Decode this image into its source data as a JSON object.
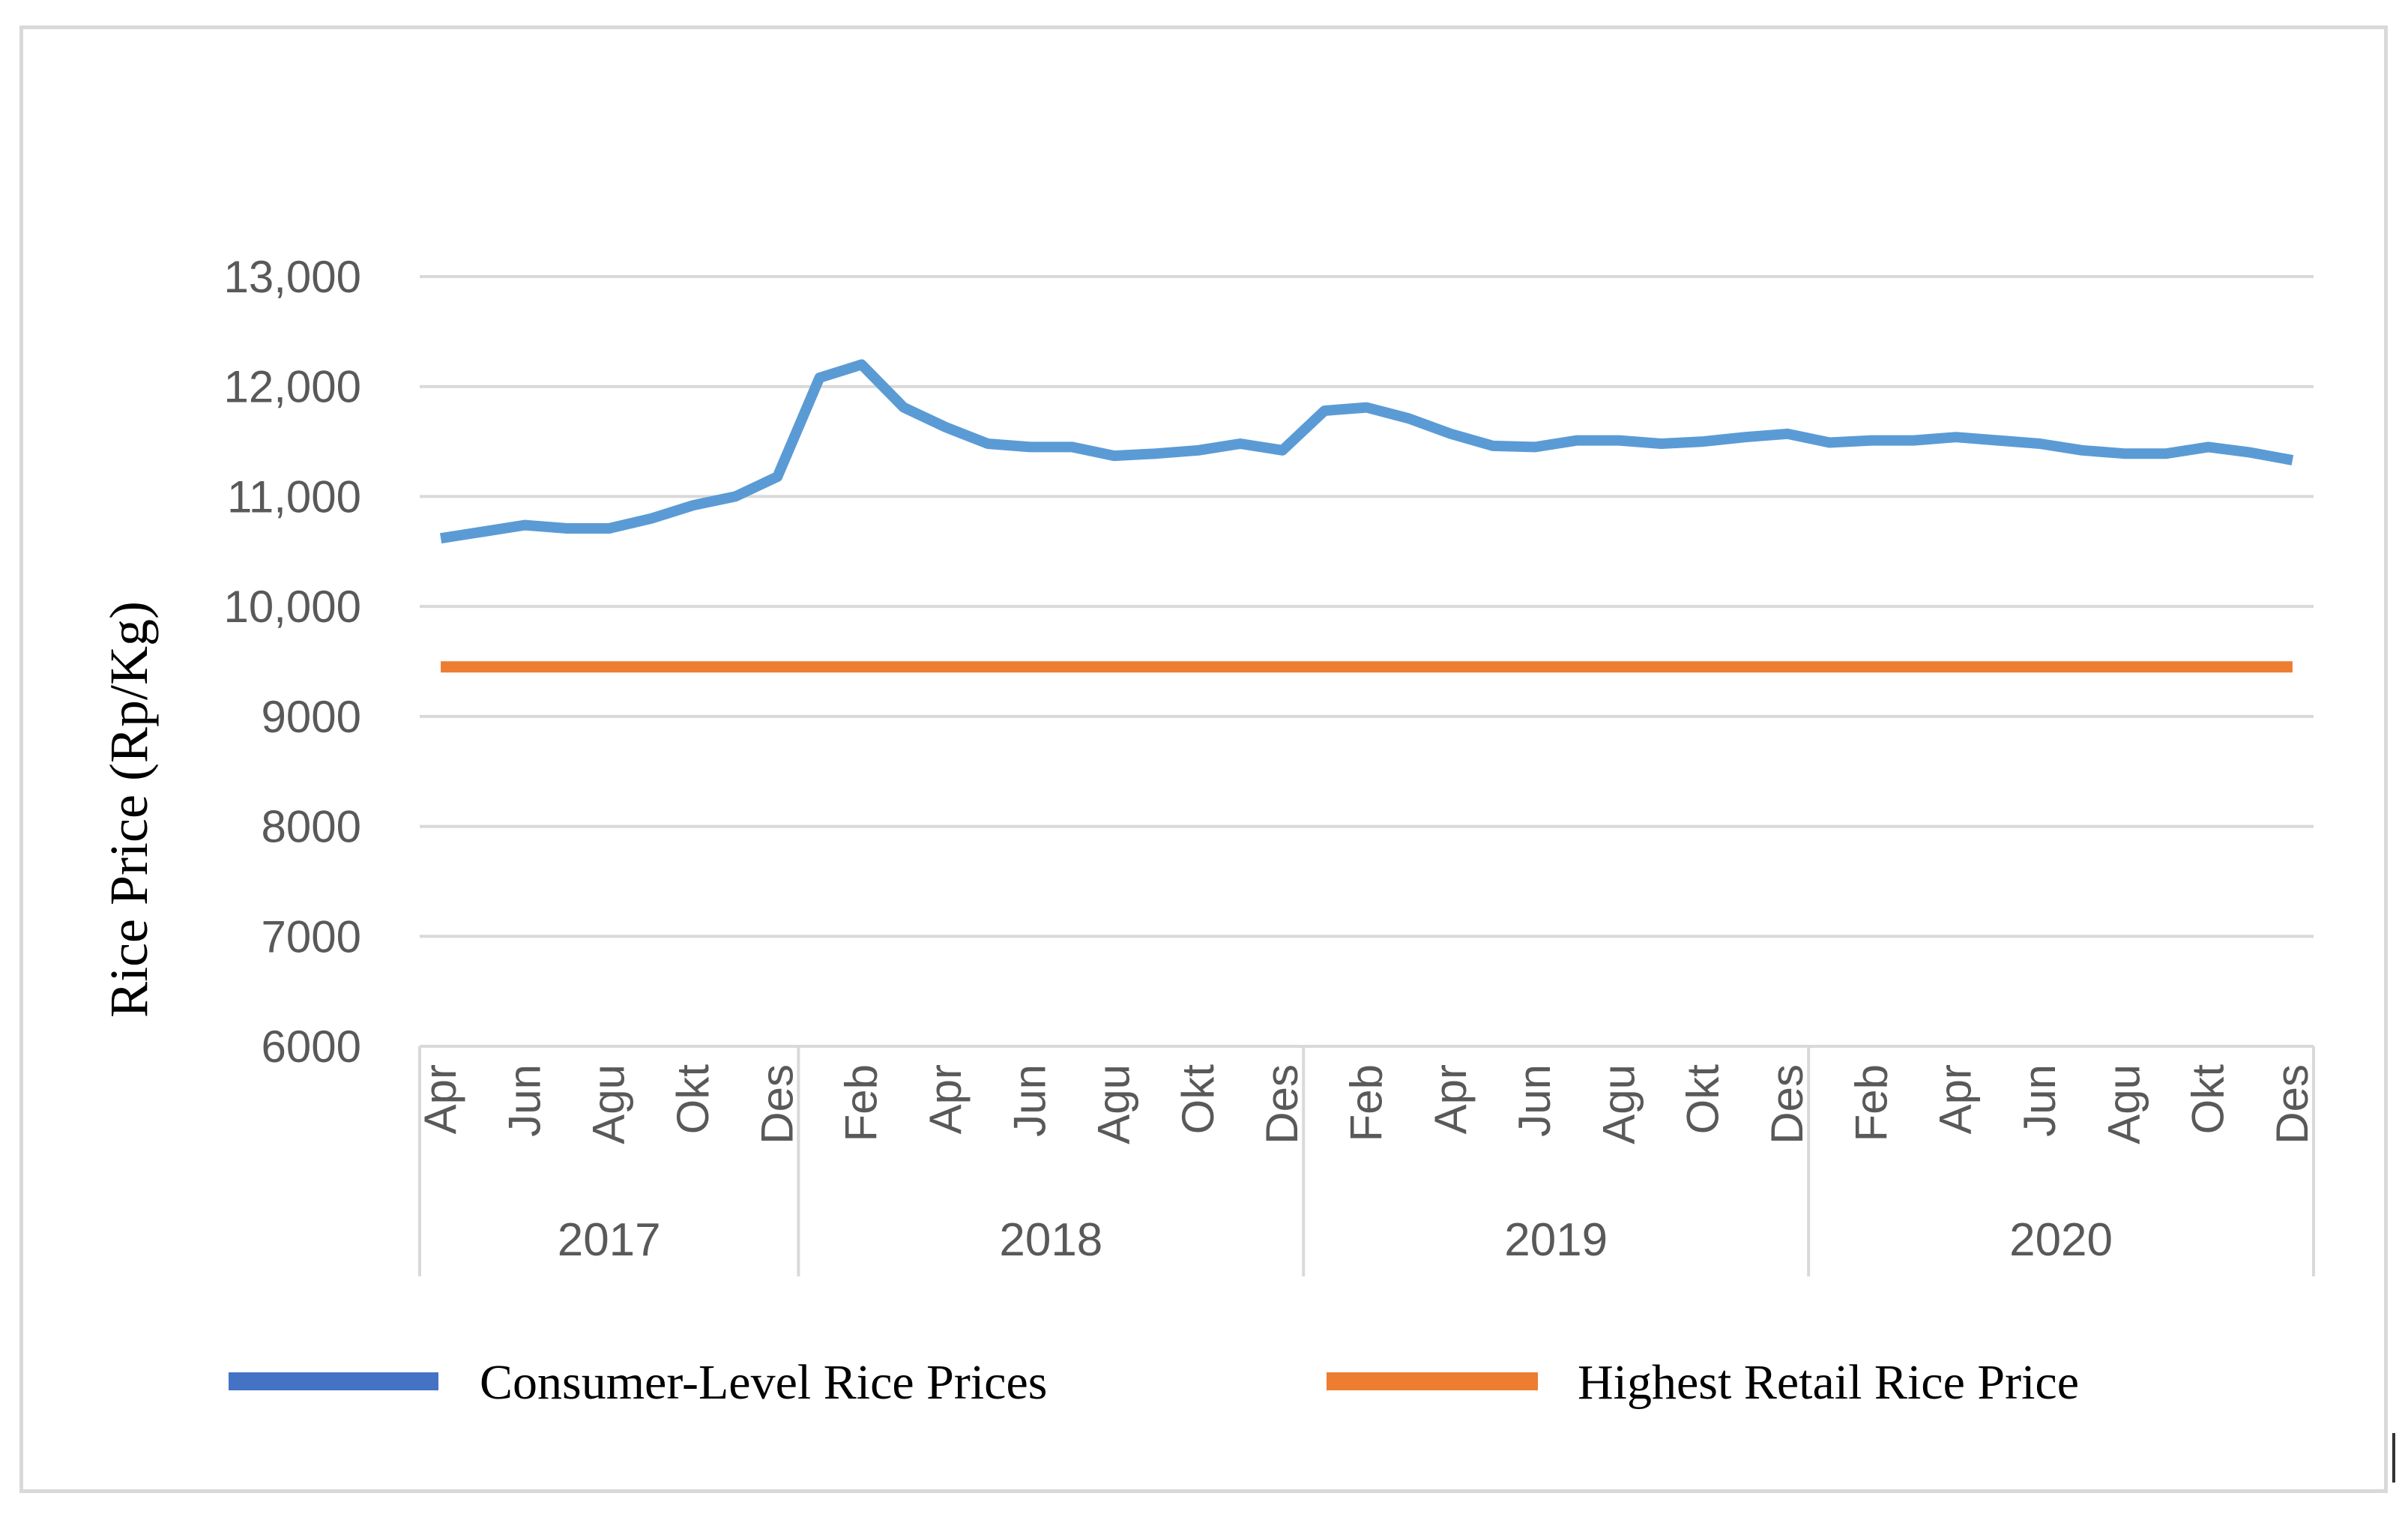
{
  "chart_data": {
    "type": "line",
    "title": "",
    "xlabel": "",
    "ylabel": "Rice Price (Rp/Kg)",
    "ylim": [
      6000,
      13000
    ],
    "y_ticks": [
      6000,
      7000,
      8000,
      9000,
      10000,
      11000,
      12000,
      13000
    ],
    "y_tick_labels": [
      "6000",
      "7000",
      "8000",
      "9000",
      "10,000",
      "11,000",
      "12,000",
      "13,000"
    ],
    "grid": true,
    "legend_position": "bottom",
    "x": [
      "2017-04",
      "2017-05",
      "2017-06",
      "2017-07",
      "2017-08",
      "2017-09",
      "2017-10",
      "2017-11",
      "2017-12",
      "2018-01",
      "2018-02",
      "2018-03",
      "2018-04",
      "2018-05",
      "2018-06",
      "2018-07",
      "2018-08",
      "2018-09",
      "2018-10",
      "2018-11",
      "2018-12",
      "2019-01",
      "2019-02",
      "2019-03",
      "2019-04",
      "2019-05",
      "2019-06",
      "2019-07",
      "2019-08",
      "2019-09",
      "2019-10",
      "2019-11",
      "2019-12",
      "2020-01",
      "2020-02",
      "2020-03",
      "2020-04",
      "2020-05",
      "2020-06",
      "2020-07",
      "2020-08",
      "2020-09",
      "2020-10",
      "2020-11",
      "2020-12"
    ],
    "x_tick_labels": [
      "Apr",
      "Jun",
      "Agu",
      "Okt",
      "Des",
      "Feb",
      "Apr",
      "Jun",
      "Agu",
      "Okt",
      "Des",
      "Feb",
      "Apr",
      "Jun",
      "Agu",
      "Okt",
      "Des",
      "Feb",
      "Apr",
      "Jun",
      "Agu",
      "Okt",
      "Des"
    ],
    "x_tick_positions": [
      0,
      2,
      4,
      6,
      8,
      10,
      12,
      14,
      16,
      18,
      20,
      22,
      24,
      26,
      28,
      30,
      32,
      34,
      36,
      38,
      40,
      42,
      44
    ],
    "year_groups": [
      {
        "label": "2017",
        "start": 0,
        "end": 8
      },
      {
        "label": "2018",
        "start": 9,
        "end": 20
      },
      {
        "label": "2019",
        "start": 21,
        "end": 32
      },
      {
        "label": "2020",
        "start": 33,
        "end": 44
      }
    ],
    "series": [
      {
        "name": "Consumer-Level Rice Prices",
        "color": "#5b9bd5",
        "legend_color": "#4472c4",
        "values": [
          10620,
          10680,
          10740,
          10710,
          10710,
          10800,
          10920,
          11000,
          11180,
          12080,
          12200,
          11810,
          11630,
          11480,
          11450,
          11450,
          11370,
          11390,
          11420,
          11480,
          11420,
          11780,
          11810,
          11710,
          11570,
          11460,
          11450,
          11510,
          11510,
          11480,
          11500,
          11540,
          11570,
          11490,
          11510,
          11510,
          11540,
          11510,
          11480,
          11420,
          11390,
          11390,
          11450,
          11400,
          11330
        ]
      },
      {
        "name": "Highest Retail Rice Price",
        "color": "#ed7d31",
        "legend_color": "#ed7d31",
        "values": [
          9450,
          9450,
          9450,
          9450,
          9450,
          9450,
          9450,
          9450,
          9450,
          9450,
          9450,
          9450,
          9450,
          9450,
          9450,
          9450,
          9450,
          9450,
          9450,
          9450,
          9450,
          9450,
          9450,
          9450,
          9450,
          9450,
          9450,
          9450,
          9450,
          9450,
          9450,
          9450,
          9450,
          9450,
          9450,
          9450,
          9450,
          9450,
          9450,
          9450,
          9450,
          9450,
          9450,
          9450,
          9450
        ]
      }
    ]
  }
}
